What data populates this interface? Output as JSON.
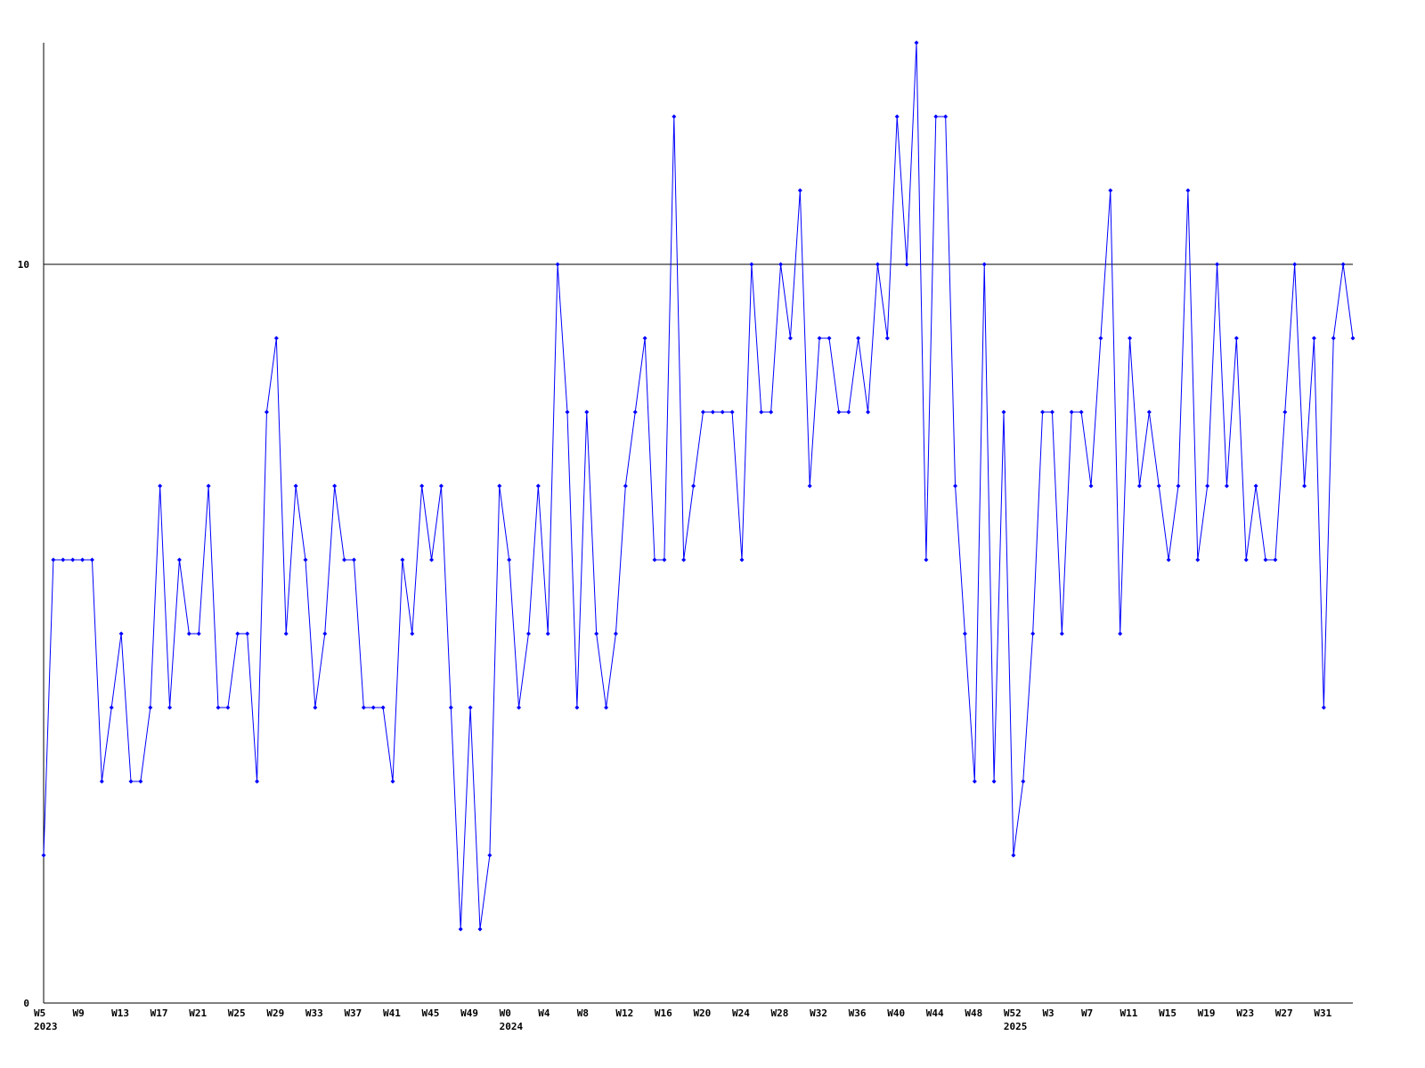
{
  "chart_data": {
    "type": "line",
    "categories": [
      "W5",
      null,
      null,
      null,
      "W9",
      null,
      null,
      null,
      "W13",
      null,
      null,
      null,
      "W17",
      null,
      null,
      null,
      "W21",
      null,
      null,
      null,
      "W25",
      null,
      null,
      null,
      "W29",
      null,
      null,
      null,
      "W33",
      null,
      null,
      null,
      "W37",
      null,
      null,
      null,
      "W41",
      null,
      null,
      null,
      "W45",
      null,
      null,
      null,
      "W49",
      null,
      null,
      null,
      "W0",
      null,
      null,
      null,
      "W4",
      null,
      null,
      null,
      "W8",
      null,
      null,
      null,
      "W12",
      null,
      null,
      null,
      "W16",
      null,
      null,
      null,
      "W20",
      null,
      null,
      null,
      "W24",
      null,
      null,
      null,
      "W28",
      null,
      null,
      null,
      "W32",
      null,
      null,
      null,
      "W36",
      null,
      null,
      null,
      "W40",
      null,
      null,
      null,
      "W44",
      null,
      null,
      null,
      "W48",
      null,
      null,
      null,
      "W52",
      null,
      null,
      null,
      "W3",
      null,
      null,
      null,
      "W7",
      null,
      null,
      null,
      "W11",
      null,
      null,
      null,
      "W15",
      null,
      null,
      null,
      "W19",
      null,
      null,
      null,
      "W23",
      null,
      null,
      null,
      "W27",
      null,
      null,
      null,
      "W31",
      null,
      null,
      null
    ],
    "year_labels": [
      "2023",
      null,
      null,
      null,
      null,
      null,
      null,
      null,
      null,
      null,
      null,
      null,
      null,
      null,
      null,
      null,
      null,
      null,
      null,
      null,
      null,
      null,
      null,
      null,
      null,
      null,
      null,
      null,
      null,
      null,
      null,
      null,
      null,
      null,
      null,
      null,
      null,
      null,
      null,
      null,
      null,
      null,
      null,
      null,
      null,
      null,
      null,
      null,
      "2024",
      null,
      null,
      null,
      null,
      null,
      null,
      null,
      null,
      null,
      null,
      null,
      null,
      null,
      null,
      null,
      null,
      null,
      null,
      null,
      null,
      null,
      null,
      null,
      null,
      null,
      null,
      null,
      null,
      null,
      null,
      null,
      null,
      null,
      null,
      null,
      null,
      null,
      null,
      null,
      null,
      null,
      null,
      null,
      null,
      null,
      null,
      null,
      null,
      null,
      null,
      null,
      "2025",
      null,
      null,
      null,
      null,
      null,
      null,
      null,
      null,
      null,
      null,
      null,
      null,
      null,
      null,
      null,
      null,
      null,
      null,
      null,
      null,
      null,
      null,
      null,
      null,
      null,
      null,
      null,
      null,
      null,
      null,
      null,
      null,
      null,
      null,
      null
    ],
    "series": [
      {
        "color": "#0000ff",
        "values": [
          2,
          6,
          6,
          6,
          6,
          6,
          3,
          4,
          5,
          3,
          3,
          4,
          7,
          4,
          6,
          5,
          5,
          7,
          4,
          4,
          5,
          5,
          3,
          8,
          9,
          5,
          7,
          6,
          4,
          5,
          7,
          6,
          6,
          4,
          4,
          4,
          3,
          6,
          5,
          7,
          6,
          7,
          4,
          1,
          4,
          1,
          2,
          7,
          6,
          4,
          5,
          7,
          5,
          10,
          8,
          4,
          8,
          5,
          4,
          5,
          7,
          8,
          9,
          6,
          6,
          12,
          6,
          7,
          8,
          8,
          8,
          8,
          6,
          10,
          8,
          8,
          10,
          9,
          11,
          7,
          9,
          9,
          8,
          8,
          9,
          8,
          10,
          9,
          12,
          10,
          13,
          6,
          12,
          12,
          7,
          5,
          3,
          10,
          3,
          8,
          2,
          3,
          5,
          8,
          8,
          5,
          8,
          8,
          7,
          9,
          11,
          5,
          9,
          7,
          8,
          7,
          6,
          7,
          11,
          6,
          7,
          10,
          7,
          9,
          6,
          7,
          6,
          6,
          8,
          10,
          7,
          9,
          4,
          9,
          10,
          9
        ]
      }
    ],
    "ylim": [
      0,
      13
    ],
    "yticks": [
      0,
      10
    ],
    "grid": true
  }
}
